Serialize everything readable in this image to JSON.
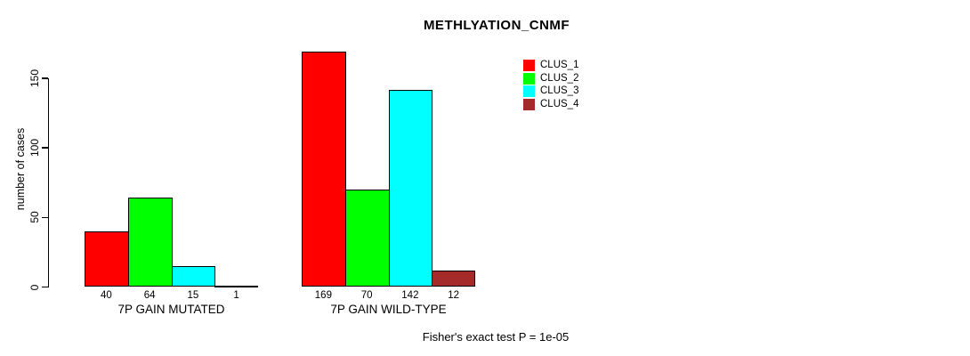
{
  "chart_data": {
    "type": "bar",
    "title": "METHLYATION_CNMF",
    "xlabel": "",
    "ylabel": "number of cases",
    "ylim": [
      0,
      150
    ],
    "yticks": [
      0,
      50,
      100,
      150
    ],
    "grid": false,
    "legend_position": "top-right",
    "show_bar_values": true,
    "categories": [
      "7P GAIN MUTATED",
      "7P GAIN WILD-TYPE"
    ],
    "series": [
      {
        "name": "CLUS_1",
        "color": "#ff0000",
        "values": [
          40,
          169
        ]
      },
      {
        "name": "CLUS_2",
        "color": "#00ff00",
        "values": [
          64,
          70
        ]
      },
      {
        "name": "CLUS_3",
        "color": "#00ffff",
        "values": [
          15,
          142
        ]
      },
      {
        "name": "CLUS_4",
        "color": "#a52a2a",
        "values": [
          1,
          12
        ]
      }
    ],
    "annotation": "Fisher's exact test P = 1e-05"
  }
}
